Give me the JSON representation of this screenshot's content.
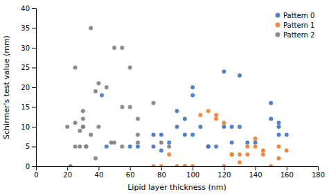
{
  "chart_data": {
    "type": "scatter",
    "xlabel": "Lipid layer thickness (nm)",
    "ylabel": "Schirmer's test value (mm)",
    "xlim": [
      0,
      180
    ],
    "ylim": [
      0,
      40
    ],
    "xticks": [
      0,
      20,
      40,
      60,
      80,
      100,
      120,
      140,
      160,
      180
    ],
    "yticks": [
      0,
      5,
      10,
      15,
      20,
      25,
      30,
      35,
      40
    ],
    "grid": false,
    "legend": "upper right",
    "series": [
      {
        "name": "Pattern 0",
        "color": "#4472C4",
        "x": [
          42,
          45,
          60,
          65,
          75,
          75,
          80,
          80,
          85,
          90,
          90,
          95,
          95,
          100,
          100,
          100,
          105,
          110,
          110,
          115,
          120,
          120,
          125,
          125,
          130,
          130,
          135,
          140,
          150,
          150,
          155,
          155,
          155,
          160
        ],
        "values": [
          18,
          5,
          5,
          5,
          8,
          5,
          8,
          4,
          6,
          14,
          10,
          8,
          12,
          20,
          18,
          8,
          10,
          5,
          5,
          5,
          24,
          10,
          10,
          6,
          23,
          10,
          6,
          6,
          16,
          12,
          8,
          10,
          11,
          8
        ]
      },
      {
        "name": "Pattern 1",
        "color": "#ED7D31",
        "x": [
          75,
          80,
          85,
          90,
          95,
          95,
          100,
          105,
          110,
          115,
          115,
          120,
          120,
          125,
          125,
          130,
          130,
          135,
          135,
          140,
          140,
          145,
          145,
          150,
          155,
          155,
          160
        ],
        "values": [
          0,
          0,
          3,
          0,
          0,
          0,
          0,
          13,
          14,
          13,
          12,
          0,
          11,
          3,
          3,
          1,
          3,
          3,
          5,
          5,
          7,
          4,
          3,
          0,
          5,
          2,
          4
        ]
      },
      {
        "name": "Pattern 2",
        "color": "#7F7F7F",
        "x": [
          20,
          22,
          25,
          25,
          25,
          28,
          28,
          30,
          30,
          30,
          30,
          32,
          32,
          35,
          35,
          38,
          38,
          40,
          40,
          45,
          48,
          50,
          50,
          55,
          55,
          55,
          60,
          60,
          65,
          65,
          65,
          75,
          80,
          85
        ],
        "values": [
          10,
          0,
          5,
          25,
          11,
          9,
          5,
          10,
          10,
          12,
          14,
          5,
          5,
          35,
          8,
          19,
          2,
          21,
          10,
          20,
          6,
          30,
          6,
          30,
          15,
          5,
          25,
          15,
          12,
          8,
          6,
          16,
          6,
          5
        ]
      }
    ]
  }
}
